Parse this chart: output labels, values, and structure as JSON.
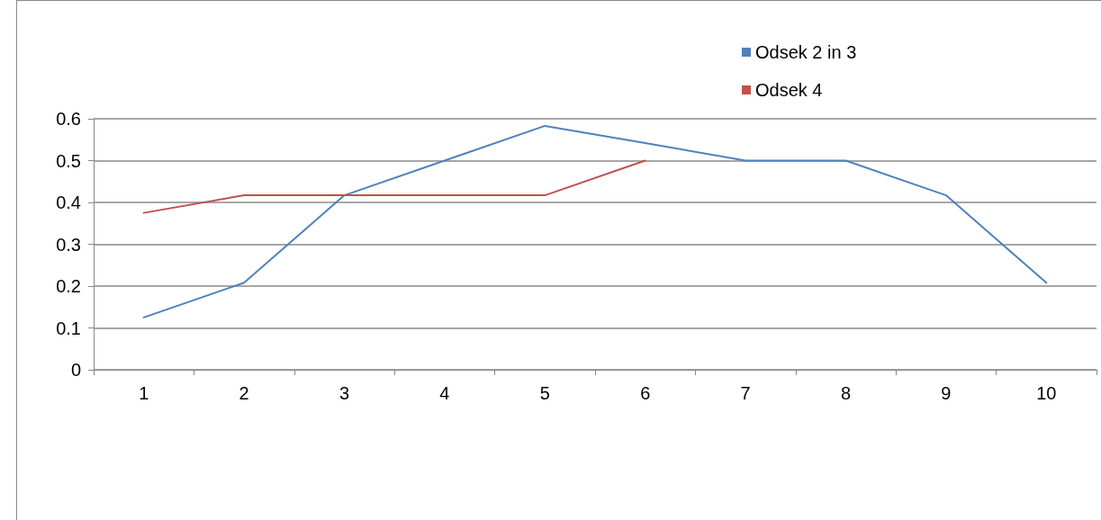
{
  "chart_data": {
    "type": "line",
    "categories": [
      "1",
      "2",
      "3",
      "4",
      "5",
      "6",
      "7",
      "8",
      "9",
      "10"
    ],
    "series": [
      {
        "name": "Odsek 2 in 3",
        "color": "#4f81bd",
        "values": [
          0.125,
          0.208,
          0.417,
          0.5,
          0.583,
          0.542,
          0.5,
          0.5,
          0.417,
          0.208
        ]
      },
      {
        "name": "Odsek 4",
        "color": "#c0504d",
        "values": [
          0.375,
          0.417,
          0.417,
          0.417,
          0.417,
          0.5,
          null,
          null,
          null,
          null
        ]
      }
    ],
    "ylim": [
      0,
      0.6
    ],
    "yticks": [
      0,
      0.1,
      0.2,
      0.3,
      0.4,
      0.5,
      0.6
    ],
    "grid": "y",
    "legend": "top right",
    "marker": "none",
    "line_style": "solid"
  }
}
